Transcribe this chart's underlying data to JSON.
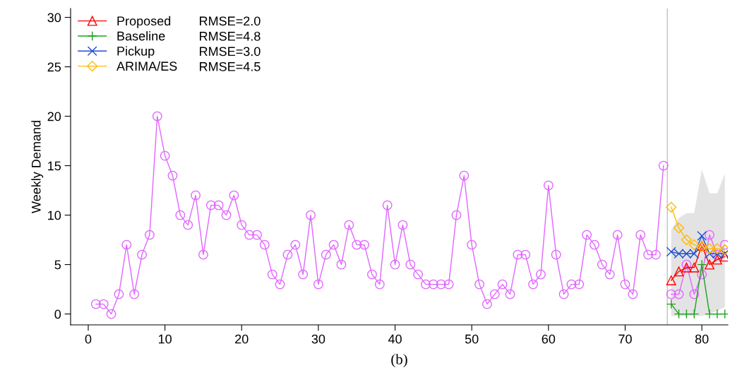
{
  "chart_data": {
    "type": "line",
    "xlabel": "(b)",
    "ylabel": "Weekly Demand",
    "xlim": [
      -2.3,
      83.4
    ],
    "xticks": [
      0,
      10,
      20,
      30,
      40,
      50,
      60,
      70,
      80
    ],
    "ylim": [
      -1.1,
      30.9
    ],
    "yticks": [
      0,
      5,
      10,
      15,
      20,
      25,
      30
    ],
    "grid": false,
    "legend": "top left",
    "ref_lines": [
      {
        "axis": "x",
        "value": 75.5,
        "color": "#c0c0c0"
      }
    ],
    "annotations": [
      "RMSE=2.0",
      "RMSE=4.8",
      "RMSE=3.0",
      "RMSE=4.5"
    ],
    "series": [
      {
        "color": "#e066ff",
        "marker": "circle",
        "x": [
          1,
          2,
          3,
          4,
          5,
          6,
          7,
          8,
          9,
          10,
          11,
          12,
          13,
          14,
          15,
          16,
          17,
          18,
          19,
          20,
          21,
          22,
          23,
          24,
          25,
          26,
          27,
          28,
          29,
          30,
          31,
          32,
          33,
          34,
          35,
          36,
          37,
          38,
          39,
          40,
          41,
          42,
          43,
          44,
          45,
          46,
          47,
          48,
          49,
          50,
          51,
          52,
          53,
          54,
          55,
          56,
          57,
          58,
          59,
          60,
          61,
          62,
          63,
          64,
          65,
          66,
          67,
          68,
          69,
          70,
          71,
          72,
          73,
          74,
          75
        ],
        "values": [
          1,
          1,
          0,
          2,
          7,
          2,
          6,
          8,
          20,
          16,
          14,
          10,
          9,
          12,
          6,
          11,
          11,
          10,
          12,
          9,
          8,
          8,
          7,
          4,
          3,
          6,
          7,
          4,
          10,
          3,
          6,
          7,
          5,
          9,
          7,
          7,
          4,
          3,
          11,
          5,
          9,
          5,
          4,
          3,
          3,
          3,
          3,
          10,
          14,
          7,
          3,
          1,
          2,
          3,
          2,
          6,
          6,
          3,
          4,
          13,
          6,
          2,
          3,
          3,
          8,
          7,
          5,
          4,
          8,
          3,
          2,
          8,
          6,
          6,
          15
        ]
      },
      {
        "color": "#e066ff",
        "marker": "circle",
        "x": [
          76,
          77,
          78,
          79,
          80,
          81,
          82,
          83
        ],
        "values": [
          2,
          2,
          5,
          2,
          4,
          8,
          6,
          7
        ]
      },
      {
        "name": "Proposed",
        "color": "#ff0000",
        "marker": "triangle",
        "x": [
          76,
          77,
          78,
          79,
          80,
          81,
          82,
          83
        ],
        "values": [
          3.4,
          4.3,
          4.7,
          4.7,
          6.9,
          5.0,
          5.5,
          5.8
        ]
      },
      {
        "name": "Baseline",
        "color": "#1fa01f",
        "marker": "plus",
        "x": [
          76,
          77,
          78,
          79,
          80,
          81,
          82,
          83
        ],
        "values": [
          1,
          0,
          0,
          0,
          5,
          0,
          0,
          0
        ]
      },
      {
        "name": "Pickup",
        "color": "#1f4fd0",
        "marker": "cross",
        "x": [
          76,
          77,
          78,
          79,
          80,
          81,
          82,
          83
        ],
        "values": [
          6.3,
          6.1,
          6.1,
          6.1,
          7.9,
          6.1,
          6.1,
          6.1
        ]
      },
      {
        "name": "ARIMA/ES",
        "color": "#ffbb00",
        "marker": "diamond",
        "x": [
          76,
          77,
          78,
          79,
          80,
          81,
          82,
          83
        ],
        "values": [
          10.8,
          8.7,
          7.5,
          7.0,
          6.8,
          6.6,
          6.6,
          6.5
        ],
        "lower": [
          -0.2,
          -0.2,
          -0.2,
          -0.2,
          -0.2,
          0,
          0.3,
          0.7
        ],
        "upper": [
          8.5,
          9.7,
          10.2,
          10.2,
          14.6,
          12.2,
          12.2,
          14.2
        ]
      }
    ]
  }
}
